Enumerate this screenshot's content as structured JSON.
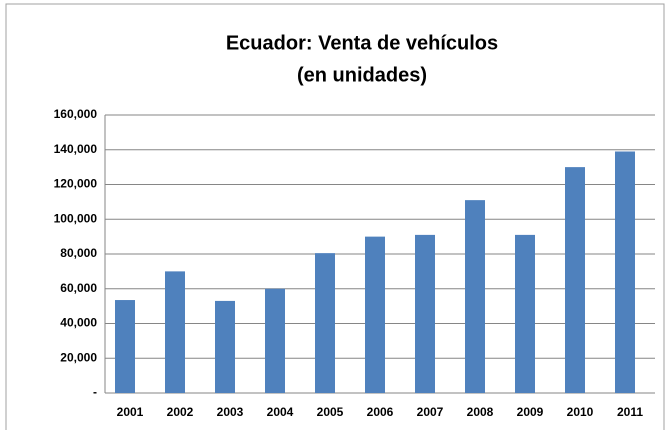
{
  "chart_data": {
    "type": "bar",
    "title": "Ecuador: Venta de vehículos",
    "subtitle": "(en unidades)",
    "categories": [
      "2001",
      "2002",
      "2003",
      "2004",
      "2005",
      "2006",
      "2007",
      "2008",
      "2009",
      "2010",
      "2011"
    ],
    "values": [
      53500,
      70000,
      53000,
      60000,
      80500,
      90000,
      91000,
      111000,
      91000,
      130000,
      139000
    ],
    "color": "#4f81bd",
    "ylim": [
      0,
      160000
    ],
    "yticks": [
      {
        "value": 0,
        "label": "-"
      },
      {
        "value": 20000,
        "label": "20,000"
      },
      {
        "value": 40000,
        "label": "40,000"
      },
      {
        "value": 60000,
        "label": "60,000"
      },
      {
        "value": 80000,
        "label": "80,000"
      },
      {
        "value": 100000,
        "label": "100,000"
      },
      {
        "value": 120000,
        "label": "120,000"
      },
      {
        "value": 140000,
        "label": "140,000"
      },
      {
        "value": 160000,
        "label": "160,000"
      }
    ],
    "grid": true
  }
}
